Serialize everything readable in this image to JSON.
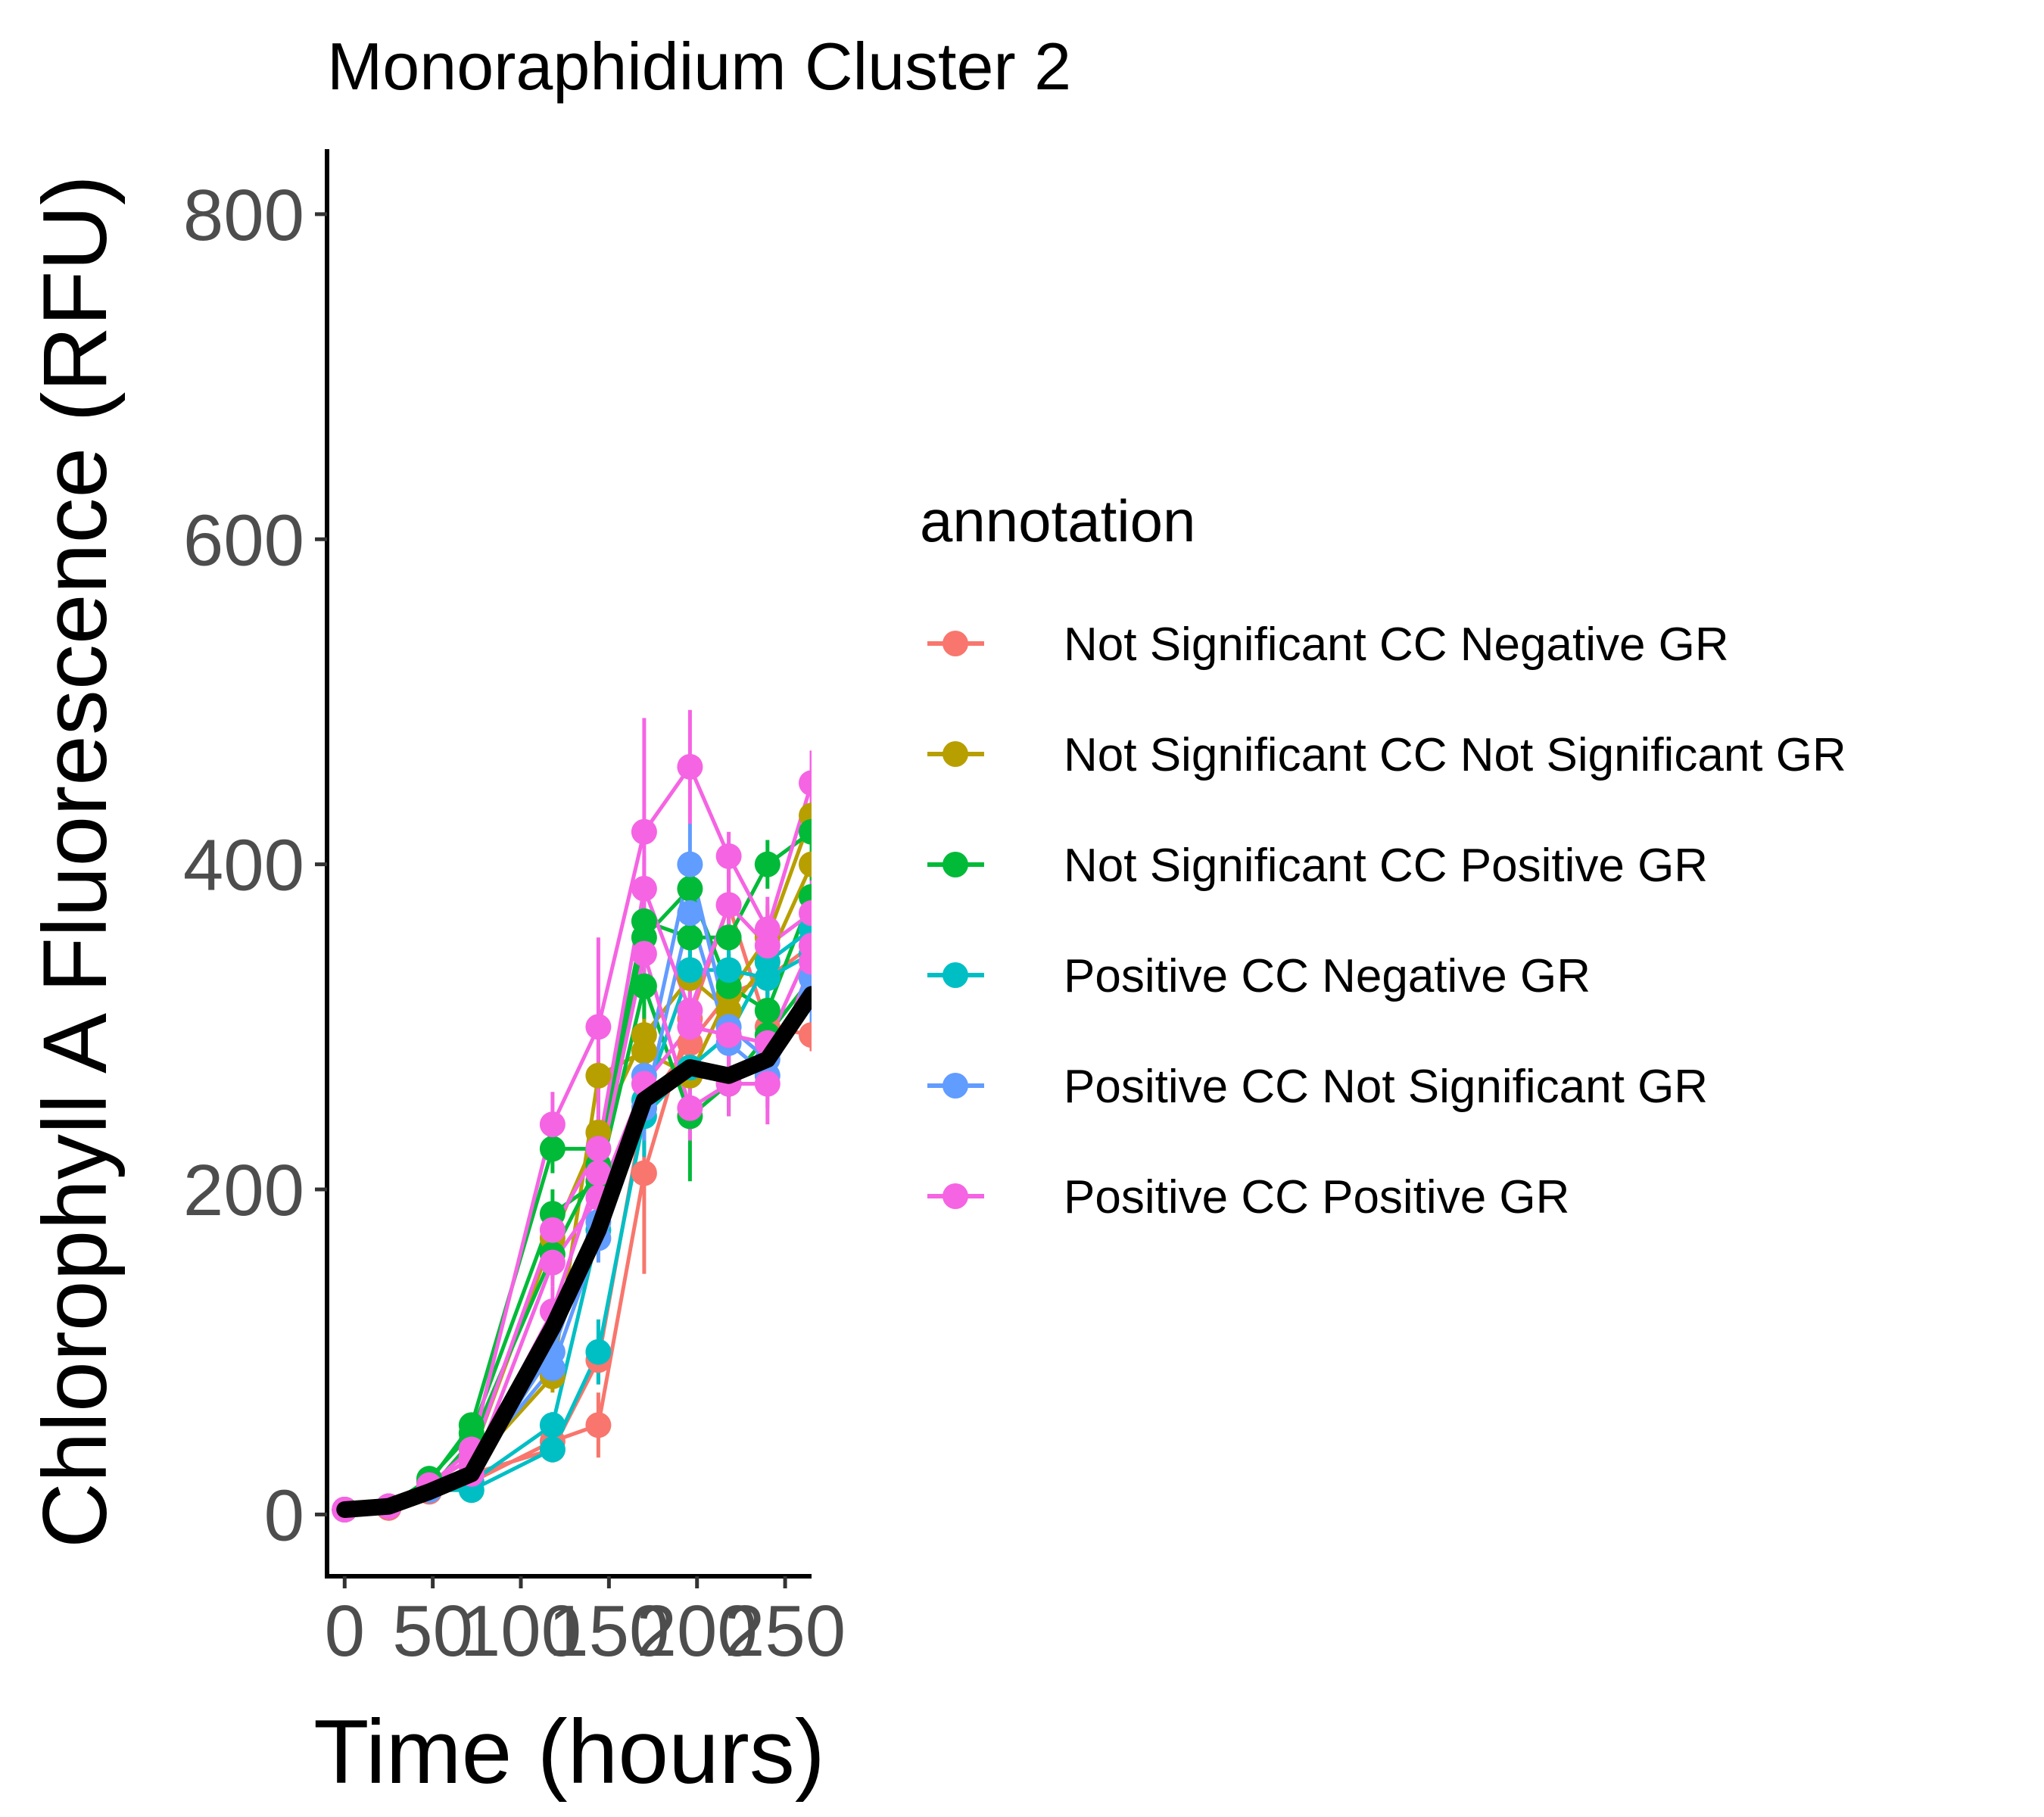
{
  "chart_data": {
    "type": "line",
    "title": "Monoraphidium Cluster 2",
    "xlabel": "Time (hours)",
    "ylabel": "Chlorophyll A Fluorescence (RFU)",
    "xlim": [
      -10,
      265
    ],
    "ylim": [
      -38,
      840
    ],
    "xticks": [
      0,
      50,
      100,
      150,
      200,
      250
    ],
    "yticks": [
      0,
      200,
      400,
      600,
      800
    ],
    "grid": false,
    "legend": {
      "title": "annotation",
      "placement": "right",
      "entries": [
        {
          "label": "Not Significant CC Negative GR",
          "color": "#F8766D"
        },
        {
          "label": "Not Significant CC Not Significant GR",
          "color": "#B79F00"
        },
        {
          "label": "Not Significant CC Positive GR",
          "color": "#00BA38"
        },
        {
          "label": "Positive CC Negative GR",
          "color": "#00BFC4"
        },
        {
          "label": "Positive CC Not Significant GR",
          "color": "#619CFF"
        },
        {
          "label": "Positive CC Positive GR",
          "color": "#F564E3"
        }
      ]
    },
    "x": [
      0,
      25,
      48,
      72,
      118,
      144,
      170,
      196,
      218,
      240,
      265
    ],
    "series": [
      {
        "group": 0,
        "values": [
          3,
          4,
          14,
          20,
          45,
          55,
          210,
          305,
          375,
          300,
          295
        ],
        "errors": [
          2,
          2,
          3,
          4,
          8,
          20,
          62,
          30,
          22,
          25,
          10
        ]
      },
      {
        "group": 0,
        "values": [
          3,
          5,
          16,
          25,
          40,
          95,
          250,
          290,
          320,
          330,
          350
        ],
        "errors": [
          2,
          2,
          3,
          4,
          6,
          15,
          25,
          20,
          20,
          20,
          20
        ]
      },
      {
        "group": 1,
        "values": [
          3,
          5,
          16,
          30,
          85,
          270,
          285,
          270,
          320,
          355,
          430
        ],
        "errors": [
          2,
          2,
          3,
          4,
          10,
          20,
          25,
          25,
          25,
          20,
          20
        ]
      },
      {
        "group": 1,
        "values": [
          3,
          5,
          18,
          35,
          170,
          235,
          295,
          330,
          310,
          340,
          400
        ],
        "errors": [
          2,
          2,
          3,
          5,
          15,
          20,
          20,
          20,
          20,
          20,
          20
        ]
      },
      {
        "group": 2,
        "values": [
          3,
          5,
          20,
          55,
          225,
          225,
          365,
          355,
          355,
          400,
          420
        ],
        "errors": [
          2,
          2,
          3,
          5,
          15,
          20,
          20,
          20,
          20,
          15,
          20
        ]
      },
      {
        "group": 2,
        "values": [
          3,
          5,
          22,
          50,
          185,
          205,
          325,
          245,
          265,
          295,
          330
        ],
        "errors": [
          2,
          2,
          3,
          5,
          15,
          20,
          20,
          40,
          20,
          20,
          20
        ]
      },
      {
        "group": 2,
        "values": [
          3,
          5,
          15,
          45,
          160,
          215,
          355,
          385,
          325,
          310,
          380
        ],
        "errors": [
          2,
          2,
          3,
          5,
          15,
          20,
          20,
          20,
          20,
          20,
          20
        ]
      },
      {
        "group": 3,
        "values": [
          3,
          5,
          15,
          15,
          40,
          100,
          245,
          275,
          295,
          340,
          360
        ],
        "errors": [
          2,
          2,
          3,
          4,
          8,
          20,
          25,
          20,
          20,
          20,
          20
        ]
      },
      {
        "group": 3,
        "values": [
          3,
          5,
          16,
          20,
          55,
          175,
          255,
          335,
          335,
          330,
          345
        ],
        "errors": [
          2,
          2,
          3,
          4,
          8,
          15,
          20,
          20,
          20,
          20,
          20
        ]
      },
      {
        "group": 4,
        "values": [
          3,
          5,
          16,
          30,
          90,
          170,
          270,
          400,
          300,
          280,
          330
        ],
        "errors": [
          2,
          2,
          3,
          4,
          10,
          15,
          20,
          25,
          20,
          20,
          20
        ]
      },
      {
        "group": 4,
        "values": [
          3,
          5,
          15,
          25,
          100,
          180,
          250,
          370,
          290,
          270,
          320
        ],
        "errors": [
          2,
          2,
          3,
          4,
          10,
          15,
          20,
          20,
          20,
          20,
          20
        ]
      },
      {
        "group": 5,
        "values": [
          3,
          5,
          18,
          40,
          240,
          300,
          420,
          460,
          405,
          360,
          450
        ],
        "errors": [
          2,
          2,
          3,
          5,
          20,
          55,
          70,
          35,
          15,
          20,
          20
        ]
      },
      {
        "group": 5,
        "values": [
          3,
          5,
          17,
          30,
          125,
          210,
          345,
          250,
          265,
          265,
          340
        ],
        "errors": [
          2,
          2,
          3,
          5,
          15,
          20,
          20,
          20,
          20,
          25,
          20
        ]
      },
      {
        "group": 5,
        "values": [
          3,
          5,
          17,
          25,
          155,
          195,
          265,
          300,
          295,
          290,
          350
        ],
        "errors": [
          2,
          2,
          3,
          5,
          15,
          20,
          20,
          20,
          20,
          20,
          20
        ]
      },
      {
        "group": 5,
        "values": [
          3,
          5,
          18,
          35,
          175,
          225,
          385,
          310,
          375,
          350,
          370
        ],
        "errors": [
          2,
          2,
          3,
          5,
          15,
          20,
          20,
          20,
          20,
          20,
          20
        ]
      }
    ],
    "mean": {
      "color": "#000000",
      "x": [
        0,
        25,
        48,
        72,
        118,
        144,
        170,
        196,
        218,
        240,
        265
      ],
      "values": [
        3,
        5,
        14,
        25,
        115,
        175,
        255,
        275,
        270,
        280,
        320
      ]
    }
  }
}
